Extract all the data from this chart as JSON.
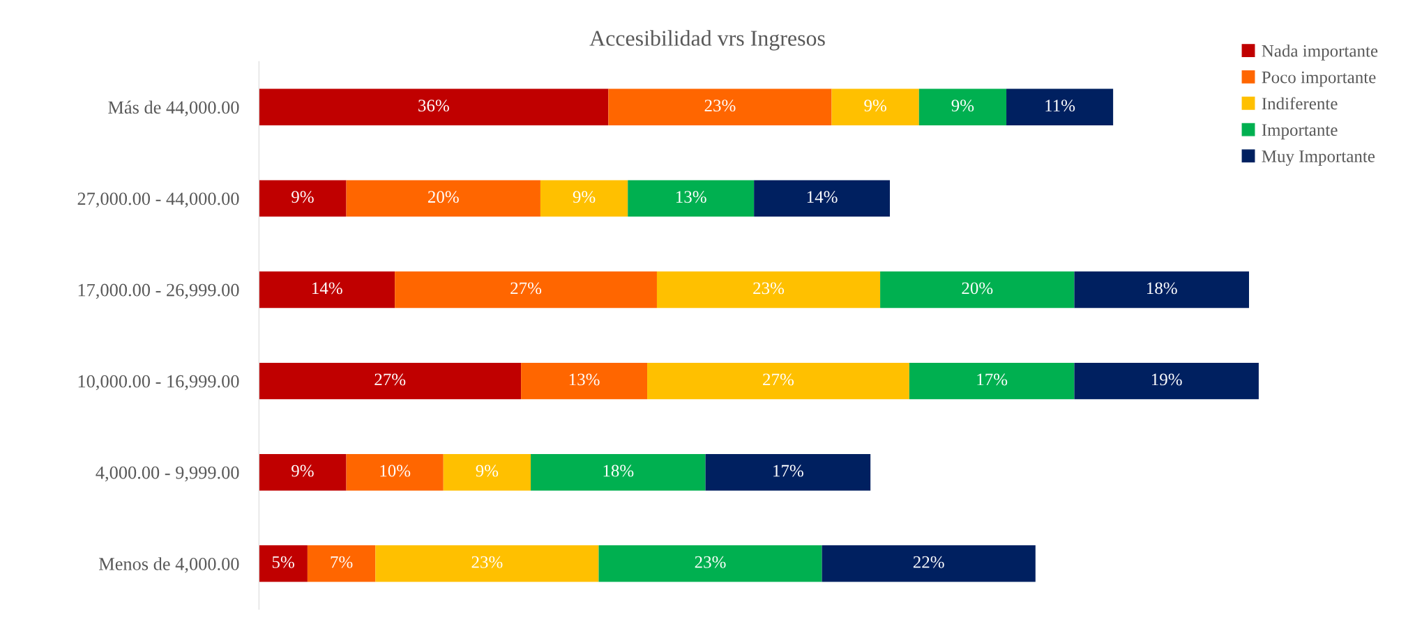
{
  "chart_data": {
    "type": "bar",
    "title": "Accesibilidad vrs Ingresos",
    "orientation": "horizontal",
    "stacked": true,
    "legend": "top right",
    "grid": false,
    "tick_labels": "y",
    "categories": [
      "Más de 44,000.00",
      "27,000.00 - 44,000.00",
      "17,000.00 - 26,999.00",
      "10,000.00 - 16,999.00",
      "4,000.00 - 9,999.00",
      "Menos de 4,000.00"
    ],
    "series": [
      {
        "name": "Nada importante",
        "color": "#c00000",
        "values": [
          36,
          9,
          14,
          27,
          9,
          5
        ],
        "value_labels": [
          "36%",
          "9%",
          "14%",
          "27%",
          "9%",
          "5%"
        ]
      },
      {
        "name": "Poco importante",
        "color": "#ff6600",
        "values": [
          23,
          20,
          27,
          13,
          10,
          7
        ],
        "value_labels": [
          "23%",
          "20%",
          "27%",
          "13%",
          "10%",
          "7%"
        ]
      },
      {
        "name": "Indiferente",
        "color": "#ffc000",
        "values": [
          9,
          9,
          23,
          27,
          9,
          23
        ],
        "value_labels": [
          "9%",
          "9%",
          "23%",
          "27%",
          "9%",
          "23%"
        ]
      },
      {
        "name": "Importante",
        "color": "#00b050",
        "values": [
          9,
          13,
          20,
          17,
          18,
          23
        ],
        "value_labels": [
          "9%",
          "13%",
          "20%",
          "17%",
          "18%",
          "23%"
        ]
      },
      {
        "name": "Muy Importante",
        "color": "#002060",
        "values": [
          11,
          14,
          18,
          19,
          17,
          22
        ],
        "value_labels": [
          "11%",
          "14%",
          "18%",
          "19%",
          "17%",
          "22%"
        ]
      }
    ]
  }
}
